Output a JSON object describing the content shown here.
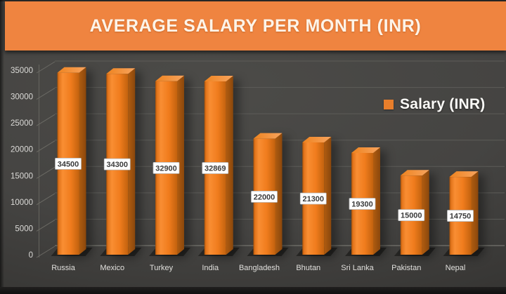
{
  "colors": {
    "banner": "#ef8440",
    "title_text": "#fdf4e9",
    "background": "#434240",
    "grid": "#5d5c58",
    "bar_front": "#f07c1e",
    "bar_side": "#9a500d",
    "bar_top": "#f7a055",
    "legend_swatch": "#e87e2b",
    "data_label_bg": "#ffffff",
    "data_label_text": "#3b3b3b",
    "axis_text": "#dcdbd8"
  },
  "chart_data": {
    "type": "bar",
    "style": "3d-column",
    "title": "AVERAGE SALARY PER MONTH (INR)",
    "categories": [
      "Russia",
      "Mexico",
      "Turkey",
      "India",
      "Bangladesh",
      "Bhutan",
      "Sri Lanka",
      "Pakistan",
      "Nepal"
    ],
    "series": [
      {
        "name": "Salary (INR)",
        "values": [
          34500,
          34300,
          32900,
          32869,
          22000,
          21300,
          19300,
          15000,
          14750
        ]
      }
    ],
    "data_labels_position": "center",
    "xlabel": "",
    "ylabel": "",
    "ylim": [
      0,
      35000
    ],
    "yticks": [
      0,
      5000,
      10000,
      15000,
      20000,
      25000,
      30000,
      35000
    ],
    "grid": true,
    "legend_position": "right"
  }
}
